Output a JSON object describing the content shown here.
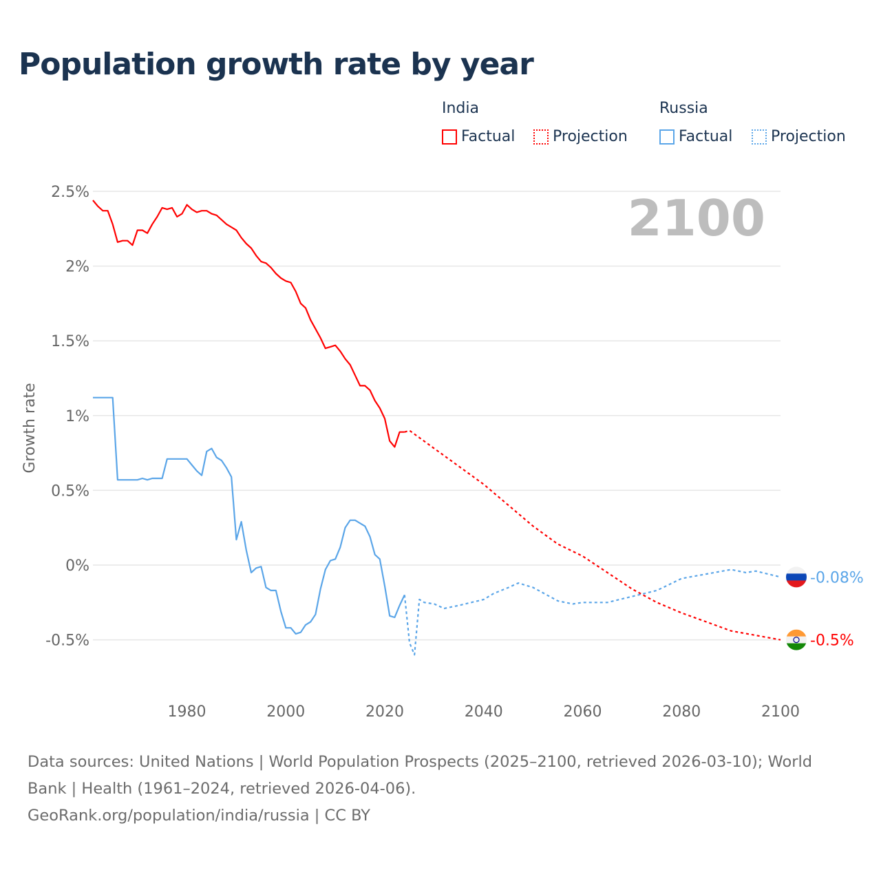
{
  "title": "Population growth rate by year",
  "legend": {
    "groups": [
      {
        "name": "India",
        "factual": "Factual",
        "projection": "Projection",
        "color": "#ff0000"
      },
      {
        "name": "Russia",
        "factual": "Factual",
        "projection": "Projection",
        "color": "#5aa5e8"
      }
    ]
  },
  "year_badge": "2100",
  "footer": {
    "sources": "Data sources: United Nations | World Population Prospects (2025–2100, retrieved 2026-03-10); World Bank | Health (1961–2024, retrieved 2026-04-06).",
    "credit": "GeoRank.org/population/india/russia | CC BY"
  },
  "chart_data": {
    "type": "line",
    "title": "Population growth rate by year",
    "xlabel": "",
    "ylabel": "Growth rate",
    "xlim": [
      1961,
      2100
    ],
    "ylim": [
      -0.75,
      2.5
    ],
    "x_ticks": [
      {
        "v": 1980,
        "label": "1980"
      },
      {
        "v": 2000,
        "label": "2000"
      },
      {
        "v": 2020,
        "label": "2020"
      },
      {
        "v": 2040,
        "label": "2040"
      },
      {
        "v": 2060,
        "label": "2060"
      },
      {
        "v": 2080,
        "label": "2080"
      },
      {
        "v": 2100,
        "label": "2100"
      }
    ],
    "y_ticks": [
      {
        "v": 2.5,
        "label": "2.5%"
      },
      {
        "v": 2,
        "label": "2%"
      },
      {
        "v": 1.5,
        "label": "1.5%"
      },
      {
        "v": 1,
        "label": "1%"
      },
      {
        "v": 0.5,
        "label": "0.5%"
      },
      {
        "v": 0,
        "label": "0%"
      },
      {
        "v": -0.5,
        "label": "-0.5%"
      }
    ],
    "grid": true,
    "series": [
      {
        "name": "India Factual",
        "color": "#ff0000",
        "style": "solid",
        "x": [
          1961,
          1962,
          1963,
          1964,
          1965,
          1966,
          1967,
          1968,
          1969,
          1970,
          1971,
          1972,
          1973,
          1974,
          1975,
          1976,
          1977,
          1978,
          1979,
          1980,
          1981,
          1982,
          1983,
          1984,
          1985,
          1986,
          1987,
          1988,
          1989,
          1990,
          1991,
          1992,
          1993,
          1994,
          1995,
          1996,
          1997,
          1998,
          1999,
          2000,
          2001,
          2002,
          2003,
          2004,
          2005,
          2006,
          2007,
          2008,
          2009,
          2010,
          2011,
          2012,
          2013,
          2014,
          2015,
          2016,
          2017,
          2018,
          2019,
          2020,
          2021,
          2022,
          2023,
          2024
        ],
        "y": [
          2.44,
          2.4,
          2.37,
          2.37,
          2.28,
          2.16,
          2.17,
          2.17,
          2.14,
          2.24,
          2.24,
          2.22,
          2.28,
          2.33,
          2.39,
          2.38,
          2.39,
          2.33,
          2.35,
          2.41,
          2.38,
          2.36,
          2.37,
          2.37,
          2.35,
          2.34,
          2.31,
          2.28,
          2.26,
          2.24,
          2.19,
          2.15,
          2.12,
          2.07,
          2.03,
          2.02,
          1.99,
          1.95,
          1.92,
          1.9,
          1.89,
          1.83,
          1.75,
          1.72,
          1.64,
          1.58,
          1.52,
          1.45,
          1.46,
          1.47,
          1.43,
          1.38,
          1.34,
          1.27,
          1.2,
          1.2,
          1.17,
          1.1,
          1.05,
          0.98,
          0.83,
          0.79,
          0.89,
          0.89
        ]
      },
      {
        "name": "India Projection",
        "color": "#ff0000",
        "style": "dotted",
        "x": [
          2024,
          2025,
          2030,
          2035,
          2040,
          2045,
          2050,
          2055,
          2060,
          2065,
          2070,
          2075,
          2080,
          2085,
          2090,
          2095,
          2100
        ],
        "y": [
          0.89,
          0.9,
          0.78,
          0.66,
          0.54,
          0.4,
          0.26,
          0.14,
          0.06,
          -0.05,
          -0.16,
          -0.25,
          -0.32,
          -0.38,
          -0.44,
          -0.47,
          -0.5
        ]
      },
      {
        "name": "Russia Factual",
        "color": "#5aa5e8",
        "style": "solid",
        "x": [
          1961,
          1962,
          1963,
          1964,
          1965,
          1966,
          1967,
          1968,
          1969,
          1970,
          1971,
          1972,
          1973,
          1974,
          1975,
          1976,
          1977,
          1978,
          1979,
          1980,
          1981,
          1982,
          1983,
          1984,
          1985,
          1986,
          1987,
          1988,
          1989,
          1990,
          1991,
          1992,
          1993,
          1994,
          1995,
          1996,
          1997,
          1998,
          1999,
          2000,
          2001,
          2002,
          2003,
          2004,
          2005,
          2006,
          2007,
          2008,
          2009,
          2010,
          2011,
          2012,
          2013,
          2014,
          2015,
          2016,
          2017,
          2018,
          2019,
          2020,
          2021,
          2022,
          2023,
          2024
        ],
        "y": [
          1.12,
          1.12,
          1.12,
          1.12,
          1.12,
          0.57,
          0.57,
          0.57,
          0.57,
          0.57,
          0.58,
          0.57,
          0.58,
          0.58,
          0.58,
          0.71,
          0.71,
          0.71,
          0.71,
          0.71,
          0.67,
          0.63,
          0.6,
          0.76,
          0.78,
          0.72,
          0.7,
          0.65,
          0.59,
          0.17,
          0.29,
          0.1,
          -0.05,
          -0.02,
          -0.01,
          -0.15,
          -0.17,
          -0.17,
          -0.31,
          -0.42,
          -0.42,
          -0.46,
          -0.45,
          -0.4,
          -0.38,
          -0.33,
          -0.16,
          -0.03,
          0.03,
          0.04,
          0.12,
          0.25,
          0.3,
          0.3,
          0.28,
          0.26,
          0.19,
          0.07,
          0.04,
          -0.14,
          -0.34,
          -0.35,
          -0.27,
          -0.2
        ]
      },
      {
        "name": "Russia Projection",
        "color": "#5aa5e8",
        "style": "dotted",
        "x": [
          2024,
          2025,
          2026,
          2027,
          2028,
          2030,
          2032,
          2035,
          2040,
          2042,
          2045,
          2047,
          2050,
          2055,
          2058,
          2060,
          2065,
          2070,
          2075,
          2080,
          2085,
          2090,
          2093,
          2095,
          2100
        ],
        "y": [
          -0.2,
          -0.52,
          -0.6,
          -0.23,
          -0.25,
          -0.26,
          -0.29,
          -0.27,
          -0.23,
          -0.19,
          -0.15,
          -0.12,
          -0.15,
          -0.24,
          -0.26,
          -0.25,
          -0.25,
          -0.21,
          -0.17,
          -0.09,
          -0.06,
          -0.03,
          -0.05,
          -0.04,
          -0.08
        ]
      }
    ],
    "end_labels": [
      {
        "country": "Russia",
        "label": "-0.08%",
        "value": -0.08,
        "color": "#5aa5e8"
      },
      {
        "country": "India",
        "label": "-0.5%",
        "value": -0.5,
        "color": "#ff0000"
      }
    ]
  }
}
